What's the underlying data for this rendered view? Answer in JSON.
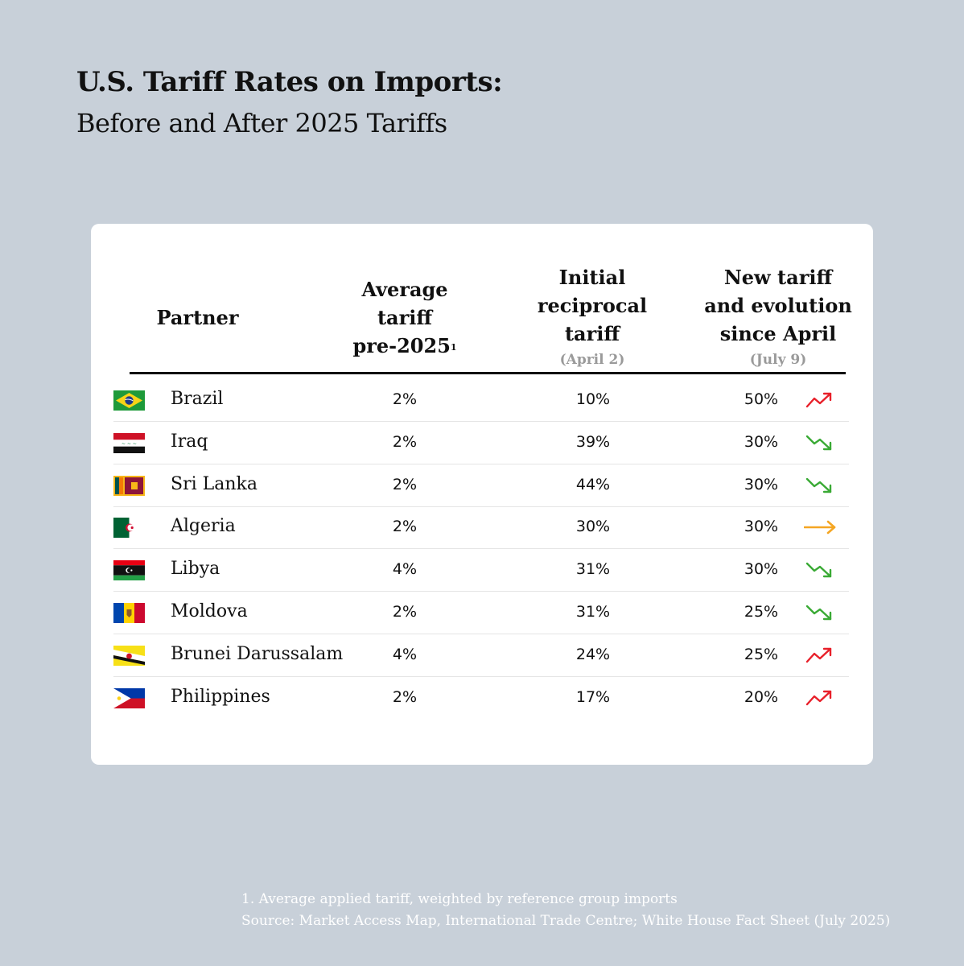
{
  "header": {
    "title": "U.S. Tariff Rates on Imports:",
    "subtitle": "Before and After 2025 Tariffs"
  },
  "columns": {
    "partner": "Partner",
    "avg_line1": "Average",
    "avg_line2": "tariff",
    "avg_line3": "pre-2025",
    "avg_sup": "1",
    "init_line1": "Initial",
    "init_line2": "reciprocal",
    "init_line3": "tariff",
    "init_date": "(April 2)",
    "new_line1": "New tariff",
    "new_line2": "and evolution",
    "new_line3": "since April",
    "new_date": "(July 9)"
  },
  "colors": {
    "up": "#e8202a",
    "down": "#3aaa35",
    "flat": "#f5a623"
  },
  "chart_data": {
    "type": "table",
    "title": "U.S. Tariff Rates on Imports: Before and After 2025 Tariffs",
    "columns": [
      "Partner",
      "Average tariff pre-2025",
      "Initial reciprocal tariff (April 2)",
      "New tariff and evolution since April (July 9)"
    ],
    "rows": [
      {
        "partner": "Brazil",
        "avg": "2%",
        "initial": "10%",
        "new": "50%",
        "trend": "up",
        "flag": "brazil"
      },
      {
        "partner": "Iraq",
        "avg": "2%",
        "initial": "39%",
        "new": "30%",
        "trend": "down",
        "flag": "iraq"
      },
      {
        "partner": "Sri Lanka",
        "avg": "2%",
        "initial": "44%",
        "new": "30%",
        "trend": "down",
        "flag": "srilanka"
      },
      {
        "partner": "Algeria",
        "avg": "2%",
        "initial": "30%",
        "new": "30%",
        "trend": "flat",
        "flag": "algeria"
      },
      {
        "partner": "Libya",
        "avg": "4%",
        "initial": "31%",
        "new": "30%",
        "trend": "down",
        "flag": "libya"
      },
      {
        "partner": "Moldova",
        "avg": "2%",
        "initial": "31%",
        "new": "25%",
        "trend": "down",
        "flag": "moldova"
      },
      {
        "partner": "Brunei Darussalam",
        "avg": "4%",
        "initial": "24%",
        "new": "25%",
        "trend": "up",
        "flag": "brunei"
      },
      {
        "partner": "Philippines",
        "avg": "2%",
        "initial": "17%",
        "new": "20%",
        "trend": "up",
        "flag": "philippines"
      }
    ]
  },
  "footnote": {
    "note": "1. Average applied tariff, weighted by reference group imports",
    "source": "Source: Market Access Map, International Trade Centre; White House Fact Sheet (July 2025)"
  }
}
